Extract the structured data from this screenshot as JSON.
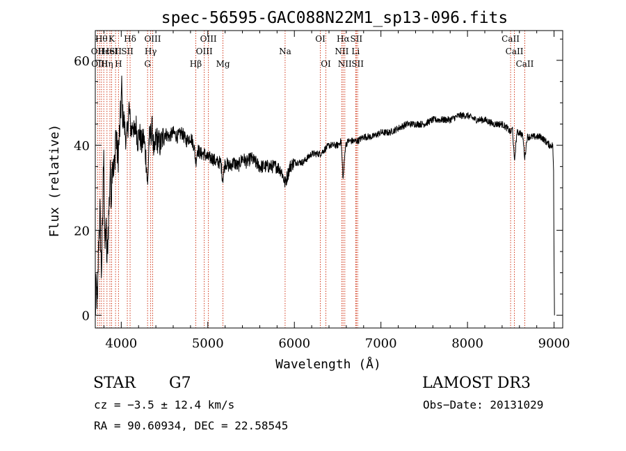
{
  "chart_data": {
    "type": "line",
    "title": "spec-56595-GAC088N22M1_sp13-096.fits",
    "xlabel": "Wavelength (Å)",
    "ylabel": "Flux (relative)",
    "xlim": [
      3700,
      9100
    ],
    "ylim": [
      -3,
      67
    ],
    "x_ticks": [
      4000,
      5000,
      6000,
      7000,
      8000,
      9000
    ],
    "y_ticks": [
      0,
      20,
      40,
      60
    ],
    "grid": false,
    "series": [
      {
        "color": "#000000",
        "anchors": [
          [
            3700,
            0
          ],
          [
            3712,
            7
          ],
          [
            3725,
            2
          ],
          [
            3740,
            18
          ],
          [
            3755,
            24
          ],
          [
            3770,
            10
          ],
          [
            3785,
            22
          ],
          [
            3798,
            42
          ],
          [
            3810,
            14
          ],
          [
            3822,
            22
          ],
          [
            3835,
            12
          ],
          [
            3848,
            20
          ],
          [
            3860,
            26
          ],
          [
            3872,
            34
          ],
          [
            3885,
            28
          ],
          [
            3898,
            38
          ],
          [
            3912,
            33
          ],
          [
            3925,
            36
          ],
          [
            3935,
            44
          ],
          [
            3950,
            39
          ],
          [
            3962,
            37
          ],
          [
            3975,
            41
          ],
          [
            3990,
            46
          ],
          [
            4005,
            54
          ],
          [
            4015,
            47
          ],
          [
            4030,
            46
          ],
          [
            4045,
            43
          ],
          [
            4060,
            41
          ],
          [
            4075,
            44
          ],
          [
            4090,
            49
          ],
          [
            4105,
            45
          ],
          [
            4120,
            43
          ],
          [
            4135,
            46
          ],
          [
            4150,
            42
          ],
          [
            4170,
            45
          ],
          [
            4190,
            41
          ],
          [
            4210,
            43
          ],
          [
            4235,
            40
          ],
          [
            4260,
            42
          ],
          [
            4290,
            36
          ],
          [
            4305,
            30
          ],
          [
            4320,
            41
          ],
          [
            4345,
            43
          ],
          [
            4360,
            44
          ],
          [
            4380,
            37
          ],
          [
            4400,
            42
          ],
          [
            4450,
            40
          ],
          [
            4500,
            43
          ],
          [
            4550,
            42
          ],
          [
            4600,
            43
          ],
          [
            4650,
            42
          ],
          [
            4700,
            43
          ],
          [
            4750,
            41
          ],
          [
            4800,
            42
          ],
          [
            4840,
            40
          ],
          [
            4861,
            36
          ],
          [
            4880,
            39
          ],
          [
            4920,
            38
          ],
          [
            4960,
            38
          ],
          [
            5000,
            37
          ],
          [
            5050,
            37
          ],
          [
            5100,
            36
          ],
          [
            5150,
            36
          ],
          [
            5172,
            32
          ],
          [
            5200,
            36
          ],
          [
            5250,
            35
          ],
          [
            5300,
            36
          ],
          [
            5350,
            35
          ],
          [
            5400,
            37
          ],
          [
            5450,
            36
          ],
          [
            5500,
            37
          ],
          [
            5550,
            36
          ],
          [
            5600,
            35
          ],
          [
            5650,
            35
          ],
          [
            5700,
            35
          ],
          [
            5750,
            35
          ],
          [
            5800,
            35
          ],
          [
            5850,
            34
          ],
          [
            5893,
            31
          ],
          [
            5950,
            35
          ],
          [
            6000,
            36
          ],
          [
            6050,
            36
          ],
          [
            6100,
            36
          ],
          [
            6150,
            37
          ],
          [
            6200,
            38
          ],
          [
            6250,
            38
          ],
          [
            6300,
            38
          ],
          [
            6350,
            39
          ],
          [
            6400,
            40
          ],
          [
            6450,
            40
          ],
          [
            6500,
            40
          ],
          [
            6540,
            41
          ],
          [
            6563,
            32
          ],
          [
            6590,
            40
          ],
          [
            6620,
            41
          ],
          [
            6680,
            41
          ],
          [
            6730,
            41
          ],
          [
            6800,
            42
          ],
          [
            6900,
            42
          ],
          [
            7000,
            43
          ],
          [
            7100,
            43
          ],
          [
            7200,
            44
          ],
          [
            7300,
            45
          ],
          [
            7400,
            45
          ],
          [
            7500,
            45
          ],
          [
            7600,
            46
          ],
          [
            7700,
            46
          ],
          [
            7800,
            46
          ],
          [
            7900,
            47
          ],
          [
            8000,
            47
          ],
          [
            8100,
            46
          ],
          [
            8200,
            46
          ],
          [
            8300,
            45
          ],
          [
            8400,
            45
          ],
          [
            8460,
            44
          ],
          [
            8498,
            43
          ],
          [
            8520,
            44
          ],
          [
            8542,
            36
          ],
          [
            8570,
            43
          ],
          [
            8610,
            43
          ],
          [
            8640,
            42
          ],
          [
            8662,
            37
          ],
          [
            8690,
            42
          ],
          [
            8750,
            42
          ],
          [
            8800,
            42
          ],
          [
            8850,
            42
          ],
          [
            8900,
            41
          ],
          [
            8950,
            40
          ],
          [
            8985,
            40
          ],
          [
            8995,
            34
          ],
          [
            9000,
            12
          ],
          [
            9005,
            0
          ]
        ]
      }
    ],
    "lines": [
      {
        "wavelength": 3727,
        "label": "OII",
        "row": 1
      },
      {
        "wavelength": 3750,
        "label": "OIII",
        "row": 2
      },
      {
        "wavelength": 3771,
        "label": "Hθ",
        "row": 0
      },
      {
        "wavelength": 3798,
        "label": "Hε",
        "row": 1
      },
      {
        "wavelength": 3835,
        "label": "Hη",
        "row": 2
      },
      {
        "wavelength": 3869,
        "label": "HeI",
        "row": 1
      },
      {
        "wavelength": 3889,
        "label": "K",
        "row": 0
      },
      {
        "wavelength": 3934,
        "label": "SII",
        "row": 1
      },
      {
        "wavelength": 3968,
        "label": "H",
        "row": 2
      },
      {
        "wavelength": 4102,
        "label": "Hδ",
        "row": 0
      },
      {
        "wavelength": 4070,
        "label": "SII",
        "row": 1
      },
      {
        "wavelength": 4304,
        "label": "G",
        "row": 2
      },
      {
        "wavelength": 4340,
        "label": "Hγ",
        "row": 1
      },
      {
        "wavelength": 4363,
        "label": "OIII",
        "row": 0
      },
      {
        "wavelength": 4861,
        "label": "Hβ",
        "row": 2
      },
      {
        "wavelength": 4959,
        "label": "OIII",
        "row": 1
      },
      {
        "wavelength": 5007,
        "label": "OIII",
        "row": 0
      },
      {
        "wavelength": 5175,
        "label": "Mg",
        "row": 2
      },
      {
        "wavelength": 5893,
        "label": "Na",
        "row": 1
      },
      {
        "wavelength": 6300,
        "label": "OI",
        "row": 0
      },
      {
        "wavelength": 6364,
        "label": "OI",
        "row": 2
      },
      {
        "wavelength": 6548,
        "label": "NII",
        "row": 1
      },
      {
        "wavelength": 6563,
        "label": "Hα",
        "row": 0
      },
      {
        "wavelength": 6583,
        "label": "NII",
        "row": 2
      },
      {
        "wavelength": 6708,
        "label": "Li",
        "row": 1
      },
      {
        "wavelength": 6716,
        "label": "SII",
        "row": 0
      },
      {
        "wavelength": 6731,
        "label": "SII",
        "row": 2
      },
      {
        "wavelength": 8498,
        "label": "CaII",
        "row": 0
      },
      {
        "wavelength": 8542,
        "label": "CaII",
        "row": 1
      },
      {
        "wavelength": 8662,
        "label": "CaII",
        "row": 2
      }
    ],
    "line_color": "#cc2200",
    "axis_color": "#000000"
  },
  "info": {
    "class": "STAR",
    "subclass": "G7",
    "survey": "LAMOST DR3",
    "cz": "cz = −3.5 ± 12.4 km/s",
    "obs_date": "Obs−Date: 20131029",
    "coords": "RA =  90.60934, DEC =  22.58545"
  }
}
